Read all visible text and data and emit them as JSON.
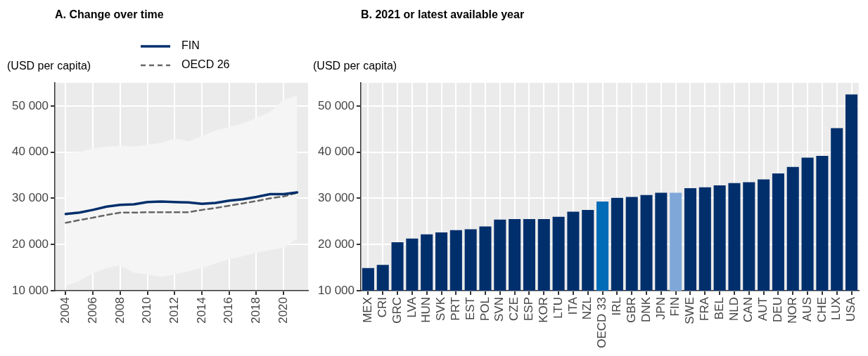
{
  "chart_data": [
    {
      "type": "line",
      "title": "A. Change over time",
      "ylabel": "(USD per capita)",
      "legend": "top",
      "grid": true,
      "x": [
        2004,
        2005,
        2006,
        2007,
        2008,
        2009,
        2010,
        2011,
        2012,
        2013,
        2014,
        2015,
        2016,
        2017,
        2018,
        2019,
        2020,
        2021
      ],
      "xlim": [
        2003.2,
        2021.8
      ],
      "xticks": [
        2004,
        2006,
        2008,
        2010,
        2012,
        2014,
        2016,
        2018,
        2020
      ],
      "ylim": [
        10000,
        55000
      ],
      "yticks": [
        {
          "value": 10000,
          "label": "10 000"
        },
        {
          "value": 20000,
          "label": "20 000"
        },
        {
          "value": 30000,
          "label": "30 000"
        },
        {
          "value": 40000,
          "label": "40 000"
        },
        {
          "value": 50000,
          "label": "50 000"
        }
      ],
      "series": [
        {
          "name": "FIN",
          "color": "#002f6c",
          "values": [
            26600,
            26900,
            27500,
            28200,
            28600,
            28700,
            29200,
            29300,
            29200,
            29100,
            28800,
            29000,
            29500,
            29800,
            30300,
            30900,
            30900,
            31300
          ]
        },
        {
          "name": "OECD 26",
          "color": "#666666",
          "line_style": "dashed",
          "values": [
            24700,
            25300,
            25800,
            26400,
            26900,
            26900,
            27000,
            27000,
            27000,
            27000,
            27500,
            27900,
            28400,
            28900,
            29400,
            30000,
            30400,
            31200
          ],
          "lower": [
            11000,
            12100,
            13800,
            14900,
            15500,
            13900,
            13500,
            13000,
            13500,
            14200,
            14900,
            15900,
            16800,
            17500,
            18200,
            18800,
            19300,
            21300
          ],
          "upper": [
            39800,
            40000,
            40800,
            41200,
            41400,
            41200,
            41600,
            42000,
            43000,
            42300,
            43500,
            44700,
            45400,
            46200,
            47400,
            48700,
            51300,
            52300
          ]
        }
      ]
    },
    {
      "type": "bar",
      "title": "B. 2021 or latest available year",
      "ylabel": "(USD per capita)",
      "grid": true,
      "categories": [
        "MEX",
        "CRI",
        "GRC",
        "LVA",
        "HUN",
        "SVK",
        "PRT",
        "EST",
        "POL",
        "SVN",
        "CZE",
        "ESP",
        "KOR",
        "LTU",
        "ITA",
        "NZL",
        "OECD 33",
        "IRL",
        "GBR",
        "DNK",
        "JPN",
        "FIN",
        "SWE",
        "FRA",
        "BEL",
        "NLD",
        "CAN",
        "AUT",
        "DEU",
        "NOR",
        "AUS",
        "CHE",
        "LUX",
        "USA"
      ],
      "values": [
        14900,
        15600,
        20500,
        21300,
        22200,
        22600,
        23100,
        23300,
        23900,
        25400,
        25500,
        25500,
        25500,
        26000,
        27100,
        27500,
        29300,
        30100,
        30300,
        30700,
        31200,
        31200,
        32200,
        32400,
        32800,
        33300,
        33500,
        34100,
        35400,
        36800,
        38800,
        39200,
        45200,
        52500
      ],
      "colors": [
        "#002f6c",
        "#002f6c",
        "#002f6c",
        "#002f6c",
        "#002f6c",
        "#002f6c",
        "#002f6c",
        "#002f6c",
        "#002f6c",
        "#002f6c",
        "#002f6c",
        "#002f6c",
        "#002f6c",
        "#002f6c",
        "#002f6c",
        "#002f6c",
        "#006bb6",
        "#002f6c",
        "#002f6c",
        "#002f6c",
        "#002f6c",
        "#7fa8d9",
        "#002f6c",
        "#002f6c",
        "#002f6c",
        "#002f6c",
        "#002f6c",
        "#002f6c",
        "#002f6c",
        "#002f6c",
        "#002f6c",
        "#002f6c",
        "#002f6c",
        "#002f6c"
      ],
      "ylim": [
        10000,
        55000
      ],
      "yticks": [
        {
          "value": 10000,
          "label": "10 000"
        },
        {
          "value": 20000,
          "label": "20 000"
        },
        {
          "value": 30000,
          "label": "30 000"
        },
        {
          "value": 40000,
          "label": "40 000"
        },
        {
          "value": 50000,
          "label": "50 000"
        }
      ]
    }
  ]
}
